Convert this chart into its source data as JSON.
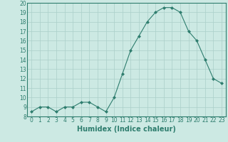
{
  "x": [
    0,
    1,
    2,
    3,
    4,
    5,
    6,
    7,
    8,
    9,
    10,
    11,
    12,
    13,
    14,
    15,
    16,
    17,
    18,
    19,
    20,
    21,
    22,
    23
  ],
  "y": [
    8.5,
    9.0,
    9.0,
    8.5,
    9.0,
    9.0,
    9.5,
    9.5,
    9.0,
    8.5,
    10.0,
    12.5,
    15.0,
    16.5,
    18.0,
    19.0,
    19.5,
    19.5,
    19.0,
    17.0,
    16.0,
    14.0,
    12.0,
    11.5
  ],
  "line_color": "#2e7d6e",
  "marker": "D",
  "marker_size": 2.0,
  "bg_color": "#cce9e3",
  "grid_color": "#aacfc9",
  "xlabel": "Humidex (Indice chaleur)",
  "xlim": [
    -0.5,
    23.5
  ],
  "ylim": [
    8,
    20
  ],
  "yticks": [
    8,
    9,
    10,
    11,
    12,
    13,
    14,
    15,
    16,
    17,
    18,
    19,
    20
  ],
  "xticks": [
    0,
    1,
    2,
    3,
    4,
    5,
    6,
    7,
    8,
    9,
    10,
    11,
    12,
    13,
    14,
    15,
    16,
    17,
    18,
    19,
    20,
    21,
    22,
    23
  ],
  "tick_color": "#2e7d6e",
  "xlabel_fontsize": 7,
  "tick_fontsize": 5.5
}
